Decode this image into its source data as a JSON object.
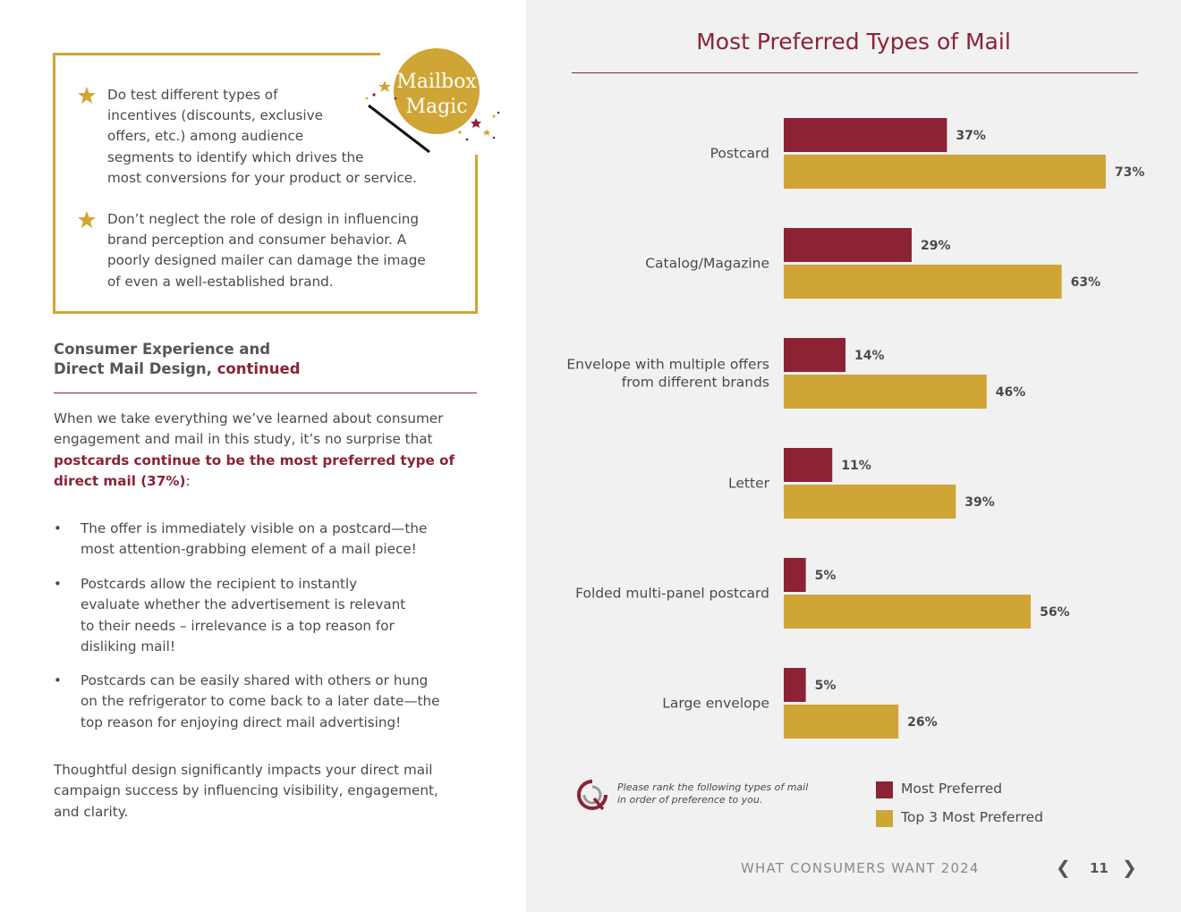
{
  "tips": [
    {
      "lines": [
        "Do test different types of",
        "incentives (discounts, exclusive",
        "offers, etc.) among audience",
        "segments to identify which drives the",
        "most conversions for your product or service."
      ]
    },
    {
      "lines": [
        "Don’t neglect the role of design in influencing",
        "brand perception and consumer behavior. A",
        "poorly designed mailer can damage the image",
        "of even a well-established brand."
      ]
    }
  ],
  "badge": {
    "line1": "Mailbox",
    "line2": "Magic"
  },
  "section": {
    "title_line1": "Consumer Experience and",
    "title_line2": "Direct Mail Design, ",
    "title_accent": "continued"
  },
  "intro": {
    "line1": "When we take everything we’ve learned about consumer",
    "line2": "engagement and mail in this study, it’s no surprise that",
    "bold_line1": "postcards continue to be the most preferred type of",
    "bold_line2": "direct mail (37%)",
    "colon": ":"
  },
  "bullets": [
    {
      "lines": [
        "The offer is immediately visible on a postcard—the",
        "most attention-grabbing element of a mail piece!"
      ]
    },
    {
      "lines": [
        "Postcards allow the recipient to instantly",
        "evaluate whether the advertisement is relevant",
        "to their needs – irrelevance is a top reason for",
        "disliking mail!"
      ]
    },
    {
      "lines": [
        "Postcards can be easily shared with others or hung",
        "on the refrigerator to come back to a later date—the",
        "top reason for enjoying direct mail advertising!"
      ]
    }
  ],
  "closing": {
    "lines": [
      "Thoughtful design significantly impacts your direct mail",
      "campaign success by influencing visibility, engagement,",
      "and clarity."
    ]
  },
  "bullet_char": "•",
  "chart_data": {
    "type": "bar",
    "orientation": "horizontal",
    "title": "Most Preferred Types of Mail",
    "categories": [
      [
        "Postcard"
      ],
      [
        "Catalog/Magazine"
      ],
      [
        "Envelope with multiple offers",
        "from different brands"
      ],
      [
        "Letter"
      ],
      [
        "Folded multi-panel postcard"
      ],
      [
        "Large envelope"
      ]
    ],
    "series": [
      {
        "name": "Most Preferred",
        "values": [
          37,
          29,
          14,
          11,
          5,
          5
        ],
        "labels": [
          "37%",
          "29%",
          "14%",
          "11%",
          "5%",
          "5%"
        ],
        "color": "#8b2335"
      },
      {
        "name": "Top 3 Most Preferred",
        "values": [
          73,
          63,
          46,
          39,
          56,
          26
        ],
        "labels": [
          "73%",
          "63%",
          "46%",
          "39%",
          "56%",
          "26%"
        ],
        "color": "#cfa535"
      }
    ],
    "xlim": [
      0,
      100
    ],
    "unit": "%"
  },
  "note": {
    "line1": "Please rank the following types of mail",
    "line2": "in order of preference to you."
  },
  "legend": [
    {
      "label": "Most Preferred",
      "color": "#8b2335"
    },
    {
      "label": "Top 3 Most Preferred",
      "color": "#cfa535"
    }
  ],
  "footer": {
    "publication": "WHAT CONSUMERS WANT 2024",
    "page": "11",
    "prev": "❮",
    "next": "❯"
  },
  "colors": {
    "accent": "#8b2335",
    "gold": "#cfa535"
  }
}
